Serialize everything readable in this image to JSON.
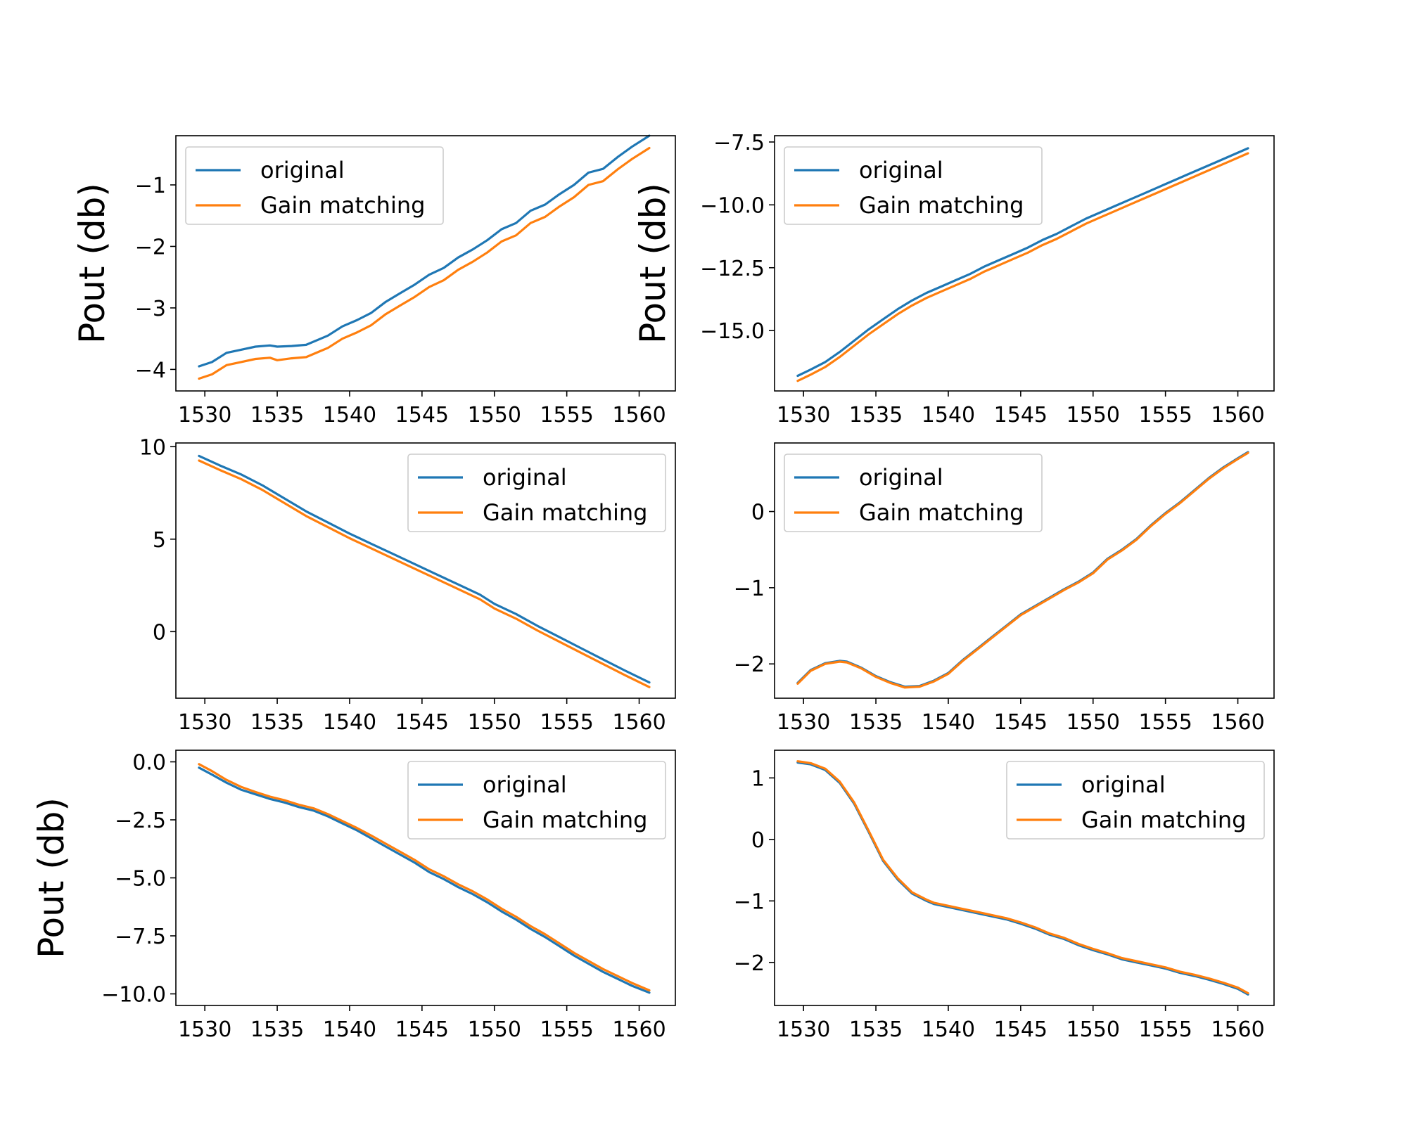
{
  "colors": {
    "original": "#1f77b4",
    "gain_matching": "#ff7f0e"
  },
  "chart_data": [
    {
      "type": "line",
      "panel": "row1-left",
      "ylabel": "Pout (db)",
      "legend_position": "upper-left",
      "xlim": [
        1528,
        1562.5
      ],
      "ylim": [
        -4.35,
        -0.2
      ],
      "xticks": [
        1530,
        1535,
        1540,
        1545,
        1550,
        1555,
        1560
      ],
      "yticks": [
        -4,
        -3,
        -2,
        -1
      ],
      "ytick_labels": [
        "−4",
        "−3",
        "−2",
        "−1"
      ],
      "series": [
        {
          "name": "original",
          "color": "#1f77b4",
          "x": [
            1529.6,
            1530.5,
            1531.5,
            1532.5,
            1533.5,
            1534.5,
            1535.0,
            1536.0,
            1537.0,
            1538.0,
            1538.5,
            1539.5,
            1540.5,
            1541.5,
            1542.5,
            1543.5,
            1544.5,
            1545.5,
            1546.5,
            1547.5,
            1548.5,
            1549.5,
            1550.5,
            1551.5,
            1552.5,
            1553.5,
            1554.5,
            1555.5,
            1556.5,
            1557.5,
            1558.5,
            1559.5,
            1560.7
          ],
          "values": [
            -3.95,
            -3.88,
            -3.73,
            -3.68,
            -3.63,
            -3.61,
            -3.63,
            -3.62,
            -3.6,
            -3.5,
            -3.45,
            -3.3,
            -3.2,
            -3.08,
            -2.9,
            -2.76,
            -2.62,
            -2.46,
            -2.35,
            -2.18,
            -2.05,
            -1.9,
            -1.72,
            -1.62,
            -1.42,
            -1.32,
            -1.15,
            -1.0,
            -0.8,
            -0.74,
            -0.55,
            -0.38,
            -0.2
          ]
        },
        {
          "name": "Gain matching",
          "color": "#ff7f0e",
          "x": [
            1529.6,
            1530.5,
            1531.5,
            1532.5,
            1533.5,
            1534.5,
            1535.0,
            1536.0,
            1537.0,
            1538.0,
            1538.5,
            1539.5,
            1540.5,
            1541.5,
            1542.5,
            1543.5,
            1544.5,
            1545.5,
            1546.5,
            1547.5,
            1548.5,
            1549.5,
            1550.5,
            1551.5,
            1552.5,
            1553.5,
            1554.5,
            1555.5,
            1556.5,
            1557.5,
            1558.5,
            1559.5,
            1560.7
          ],
          "values": [
            -4.15,
            -4.08,
            -3.93,
            -3.88,
            -3.83,
            -3.81,
            -3.85,
            -3.82,
            -3.8,
            -3.7,
            -3.65,
            -3.5,
            -3.4,
            -3.28,
            -3.1,
            -2.96,
            -2.82,
            -2.66,
            -2.55,
            -2.38,
            -2.25,
            -2.1,
            -1.92,
            -1.82,
            -1.62,
            -1.52,
            -1.35,
            -1.2,
            -1.0,
            -0.94,
            -0.75,
            -0.58,
            -0.4
          ]
        }
      ]
    },
    {
      "type": "line",
      "panel": "row1-right",
      "ylabel": "Pout (db)",
      "legend_position": "upper-left",
      "xlim": [
        1528,
        1562.5
      ],
      "ylim": [
        -17.4,
        -7.25
      ],
      "xticks": [
        1530,
        1535,
        1540,
        1545,
        1550,
        1555,
        1560
      ],
      "yticks": [
        -15.0,
        -12.5,
        -10.0,
        -7.5
      ],
      "ytick_labels": [
        "−15.0",
        "−12.5",
        "−10.0",
        "−7.5"
      ],
      "series": [
        {
          "name": "original",
          "color": "#1f77b4",
          "x": [
            1529.6,
            1530.5,
            1531.5,
            1532.5,
            1533.5,
            1534.5,
            1535.5,
            1536.5,
            1537.5,
            1538.5,
            1539.5,
            1540.5,
            1541.5,
            1542.5,
            1543.5,
            1544.5,
            1545.5,
            1546.5,
            1547.5,
            1548.5,
            1549.5,
            1550.5,
            1551.5,
            1552.5,
            1553.5,
            1554.5,
            1555.5,
            1556.5,
            1557.5,
            1558.5,
            1559.5,
            1560.7
          ],
          "values": [
            -16.8,
            -16.55,
            -16.25,
            -15.85,
            -15.4,
            -14.95,
            -14.55,
            -14.15,
            -13.8,
            -13.5,
            -13.25,
            -13.0,
            -12.75,
            -12.45,
            -12.2,
            -11.95,
            -11.7,
            -11.4,
            -11.15,
            -10.85,
            -10.55,
            -10.3,
            -10.05,
            -9.8,
            -9.55,
            -9.3,
            -9.05,
            -8.8,
            -8.55,
            -8.3,
            -8.05,
            -7.75
          ]
        },
        {
          "name": "Gain matching",
          "color": "#ff7f0e",
          "x": [
            1529.6,
            1530.5,
            1531.5,
            1532.5,
            1533.5,
            1534.5,
            1535.5,
            1536.5,
            1537.5,
            1538.5,
            1539.5,
            1540.5,
            1541.5,
            1542.5,
            1543.5,
            1544.5,
            1545.5,
            1546.5,
            1547.5,
            1548.5,
            1549.5,
            1550.5,
            1551.5,
            1552.5,
            1553.5,
            1554.5,
            1555.5,
            1556.5,
            1557.5,
            1558.5,
            1559.5,
            1560.7
          ],
          "values": [
            -17.0,
            -16.75,
            -16.45,
            -16.05,
            -15.6,
            -15.15,
            -14.75,
            -14.35,
            -14.0,
            -13.7,
            -13.45,
            -13.2,
            -12.95,
            -12.65,
            -12.4,
            -12.15,
            -11.9,
            -11.6,
            -11.35,
            -11.05,
            -10.75,
            -10.5,
            -10.25,
            -10.0,
            -9.75,
            -9.5,
            -9.25,
            -9.0,
            -8.75,
            -8.5,
            -8.25,
            -7.95
          ]
        }
      ]
    },
    {
      "type": "line",
      "panel": "row2-left",
      "legend_position": "upper-right",
      "xlim": [
        1528,
        1562.5
      ],
      "ylim": [
        -3.6,
        10.2
      ],
      "xticks": [
        1530,
        1535,
        1540,
        1545,
        1550,
        1555,
        1560
      ],
      "yticks": [
        0,
        5,
        10
      ],
      "ytick_labels": [
        "0",
        "5",
        "10"
      ],
      "series": [
        {
          "name": "original",
          "color": "#1f77b4",
          "x": [
            1529.6,
            1531.0,
            1532.5,
            1534.0,
            1535.5,
            1537.0,
            1538.5,
            1540.0,
            1541.5,
            1543.0,
            1544.5,
            1546.0,
            1547.5,
            1549.0,
            1550.0,
            1551.5,
            1553.0,
            1554.5,
            1556.0,
            1557.5,
            1559.0,
            1560.7
          ],
          "values": [
            9.5,
            9.0,
            8.5,
            7.9,
            7.2,
            6.5,
            5.9,
            5.3,
            4.75,
            4.2,
            3.65,
            3.1,
            2.55,
            2.0,
            1.5,
            0.95,
            0.3,
            -0.3,
            -0.9,
            -1.5,
            -2.1,
            -2.75
          ]
        },
        {
          "name": "Gain matching",
          "color": "#ff7f0e",
          "x": [
            1529.6,
            1531.0,
            1532.5,
            1534.0,
            1535.5,
            1537.0,
            1538.5,
            1540.0,
            1541.5,
            1543.0,
            1544.5,
            1546.0,
            1547.5,
            1549.0,
            1550.0,
            1551.5,
            1553.0,
            1554.5,
            1556.0,
            1557.5,
            1559.0,
            1560.7
          ],
          "values": [
            9.25,
            8.75,
            8.25,
            7.65,
            6.95,
            6.25,
            5.65,
            5.05,
            4.5,
            3.95,
            3.4,
            2.85,
            2.3,
            1.75,
            1.25,
            0.7,
            0.05,
            -0.55,
            -1.15,
            -1.75,
            -2.35,
            -3.0
          ]
        }
      ]
    },
    {
      "type": "line",
      "panel": "row2-right",
      "legend_position": "upper-left",
      "xlim": [
        1528,
        1562.5
      ],
      "ylim": [
        -2.45,
        0.9
      ],
      "xticks": [
        1530,
        1535,
        1540,
        1545,
        1550,
        1555,
        1560
      ],
      "yticks": [
        -2,
        -1,
        0
      ],
      "ytick_labels": [
        "−2",
        "−1",
        "0"
      ],
      "series": [
        {
          "name": "original",
          "color": "#1f77b4",
          "x": [
            1529.6,
            1530.5,
            1531.5,
            1532.5,
            1533.0,
            1534.0,
            1535.0,
            1536.0,
            1537.0,
            1538.0,
            1539.0,
            1540.0,
            1541.0,
            1542.0,
            1543.0,
            1544.0,
            1545.0,
            1546.0,
            1547.0,
            1548.0,
            1549.0,
            1550.0,
            1551.0,
            1552.0,
            1553.0,
            1554.0,
            1555.0,
            1556.0,
            1557.0,
            1558.0,
            1559.0,
            1560.0,
            1560.7
          ],
          "values": [
            -2.25,
            -2.08,
            -1.99,
            -1.96,
            -1.97,
            -2.05,
            -2.16,
            -2.24,
            -2.3,
            -2.29,
            -2.22,
            -2.12,
            -1.95,
            -1.8,
            -1.65,
            -1.5,
            -1.35,
            -1.24,
            -1.13,
            -1.02,
            -0.92,
            -0.8,
            -0.62,
            -0.5,
            -0.36,
            -0.18,
            -0.02,
            0.12,
            0.28,
            0.44,
            0.58,
            0.7,
            0.78
          ]
        },
        {
          "name": "Gain matching",
          "color": "#ff7f0e",
          "x": [
            1529.6,
            1530.5,
            1531.5,
            1532.5,
            1533.0,
            1534.0,
            1535.0,
            1536.0,
            1537.0,
            1538.0,
            1539.0,
            1540.0,
            1541.0,
            1542.0,
            1543.0,
            1544.0,
            1545.0,
            1546.0,
            1547.0,
            1548.0,
            1549.0,
            1550.0,
            1551.0,
            1552.0,
            1553.0,
            1554.0,
            1555.0,
            1556.0,
            1557.0,
            1558.0,
            1559.0,
            1560.0,
            1560.7
          ],
          "values": [
            -2.26,
            -2.09,
            -2.0,
            -1.97,
            -1.98,
            -2.06,
            -2.17,
            -2.25,
            -2.31,
            -2.3,
            -2.23,
            -2.13,
            -1.96,
            -1.81,
            -1.66,
            -1.51,
            -1.36,
            -1.25,
            -1.14,
            -1.03,
            -0.93,
            -0.81,
            -0.63,
            -0.51,
            -0.37,
            -0.19,
            -0.03,
            0.11,
            0.27,
            0.43,
            0.57,
            0.69,
            0.77
          ]
        }
      ]
    },
    {
      "type": "line",
      "panel": "row3-left",
      "ylabel": "Pout (db)",
      "legend_position": "upper-right",
      "xlim": [
        1528,
        1562.5
      ],
      "ylim": [
        -10.5,
        0.5
      ],
      "xticks": [
        1530,
        1535,
        1540,
        1545,
        1550,
        1555,
        1560
      ],
      "yticks": [
        -10.0,
        -7.5,
        -5.0,
        -2.5,
        0.0
      ],
      "ytick_labels": [
        "−10.0",
        "−7.5",
        "−5.0",
        "−2.5",
        "0.0"
      ],
      "series": [
        {
          "name": "original",
          "color": "#1f77b4",
          "x": [
            1529.6,
            1530.5,
            1531.5,
            1532.5,
            1533.5,
            1534.5,
            1535.5,
            1536.5,
            1537.5,
            1538.5,
            1539.5,
            1540.5,
            1541.5,
            1542.5,
            1543.5,
            1544.5,
            1545.5,
            1546.5,
            1547.5,
            1548.5,
            1549.5,
            1550.5,
            1551.5,
            1552.5,
            1553.5,
            1554.5,
            1555.5,
            1556.5,
            1557.5,
            1558.5,
            1559.5,
            1560.7
          ],
          "values": [
            -0.25,
            -0.55,
            -0.9,
            -1.2,
            -1.4,
            -1.6,
            -1.75,
            -1.95,
            -2.1,
            -2.35,
            -2.65,
            -2.95,
            -3.3,
            -3.65,
            -4.0,
            -4.35,
            -4.75,
            -5.05,
            -5.4,
            -5.7,
            -6.05,
            -6.45,
            -6.8,
            -7.2,
            -7.55,
            -7.95,
            -8.35,
            -8.7,
            -9.05,
            -9.35,
            -9.65,
            -9.95
          ]
        },
        {
          "name": "Gain matching",
          "color": "#ff7f0e",
          "x": [
            1529.6,
            1530.5,
            1531.5,
            1532.5,
            1533.5,
            1534.5,
            1535.5,
            1536.5,
            1537.5,
            1538.5,
            1539.5,
            1540.5,
            1541.5,
            1542.5,
            1543.5,
            1544.5,
            1545.5,
            1546.5,
            1547.5,
            1548.5,
            1549.5,
            1550.5,
            1551.5,
            1552.5,
            1553.5,
            1554.5,
            1555.5,
            1556.5,
            1557.5,
            1558.5,
            1559.5,
            1560.7
          ],
          "values": [
            -0.1,
            -0.4,
            -0.78,
            -1.08,
            -1.3,
            -1.5,
            -1.65,
            -1.85,
            -2.0,
            -2.25,
            -2.55,
            -2.85,
            -3.18,
            -3.53,
            -3.88,
            -4.23,
            -4.63,
            -4.93,
            -5.28,
            -5.58,
            -5.93,
            -6.33,
            -6.68,
            -7.08,
            -7.43,
            -7.83,
            -8.23,
            -8.58,
            -8.93,
            -9.23,
            -9.53,
            -9.85
          ]
        }
      ]
    },
    {
      "type": "line",
      "panel": "row3-right",
      "legend_position": "upper-right",
      "xlim": [
        1528,
        1562.5
      ],
      "ylim": [
        -2.7,
        1.45
      ],
      "xticks": [
        1530,
        1535,
        1540,
        1545,
        1550,
        1555,
        1560
      ],
      "yticks": [
        -2,
        -1,
        0,
        1
      ],
      "ytick_labels": [
        "−2",
        "−1",
        "0",
        "1"
      ],
      "series": [
        {
          "name": "original",
          "color": "#1f77b4",
          "x": [
            1529.6,
            1530.5,
            1531.5,
            1532.5,
            1533.5,
            1534.5,
            1535.5,
            1536.5,
            1537.5,
            1538.5,
            1539.0,
            1540.0,
            1541.0,
            1542.0,
            1543.0,
            1544.0,
            1545.0,
            1546.0,
            1547.0,
            1548.0,
            1549.0,
            1550.0,
            1551.0,
            1552.0,
            1553.0,
            1554.0,
            1555.0,
            1556.0,
            1557.0,
            1558.0,
            1559.0,
            1560.0,
            1560.7
          ],
          "values": [
            1.25,
            1.22,
            1.13,
            0.92,
            0.58,
            0.12,
            -0.35,
            -0.65,
            -0.88,
            -1.0,
            -1.05,
            -1.1,
            -1.15,
            -1.2,
            -1.25,
            -1.3,
            -1.37,
            -1.45,
            -1.55,
            -1.62,
            -1.72,
            -1.8,
            -1.87,
            -1.95,
            -2.0,
            -2.05,
            -2.1,
            -2.17,
            -2.22,
            -2.28,
            -2.35,
            -2.43,
            -2.52
          ]
        },
        {
          "name": "Gain matching",
          "color": "#ff7f0e",
          "x": [
            1529.6,
            1530.5,
            1531.5,
            1532.5,
            1533.5,
            1534.5,
            1535.5,
            1536.5,
            1537.5,
            1538.5,
            1539.0,
            1540.0,
            1541.0,
            1542.0,
            1543.0,
            1544.0,
            1545.0,
            1546.0,
            1547.0,
            1548.0,
            1549.0,
            1550.0,
            1551.0,
            1552.0,
            1553.0,
            1554.0,
            1555.0,
            1556.0,
            1557.0,
            1558.0,
            1559.0,
            1560.0,
            1560.7
          ],
          "values": [
            1.27,
            1.24,
            1.15,
            0.94,
            0.6,
            0.14,
            -0.33,
            -0.63,
            -0.86,
            -0.98,
            -1.03,
            -1.08,
            -1.13,
            -1.18,
            -1.23,
            -1.28,
            -1.35,
            -1.43,
            -1.53,
            -1.6,
            -1.7,
            -1.78,
            -1.85,
            -1.93,
            -1.98,
            -2.03,
            -2.08,
            -2.15,
            -2.2,
            -2.26,
            -2.33,
            -2.41,
            -2.5
          ]
        }
      ]
    }
  ]
}
